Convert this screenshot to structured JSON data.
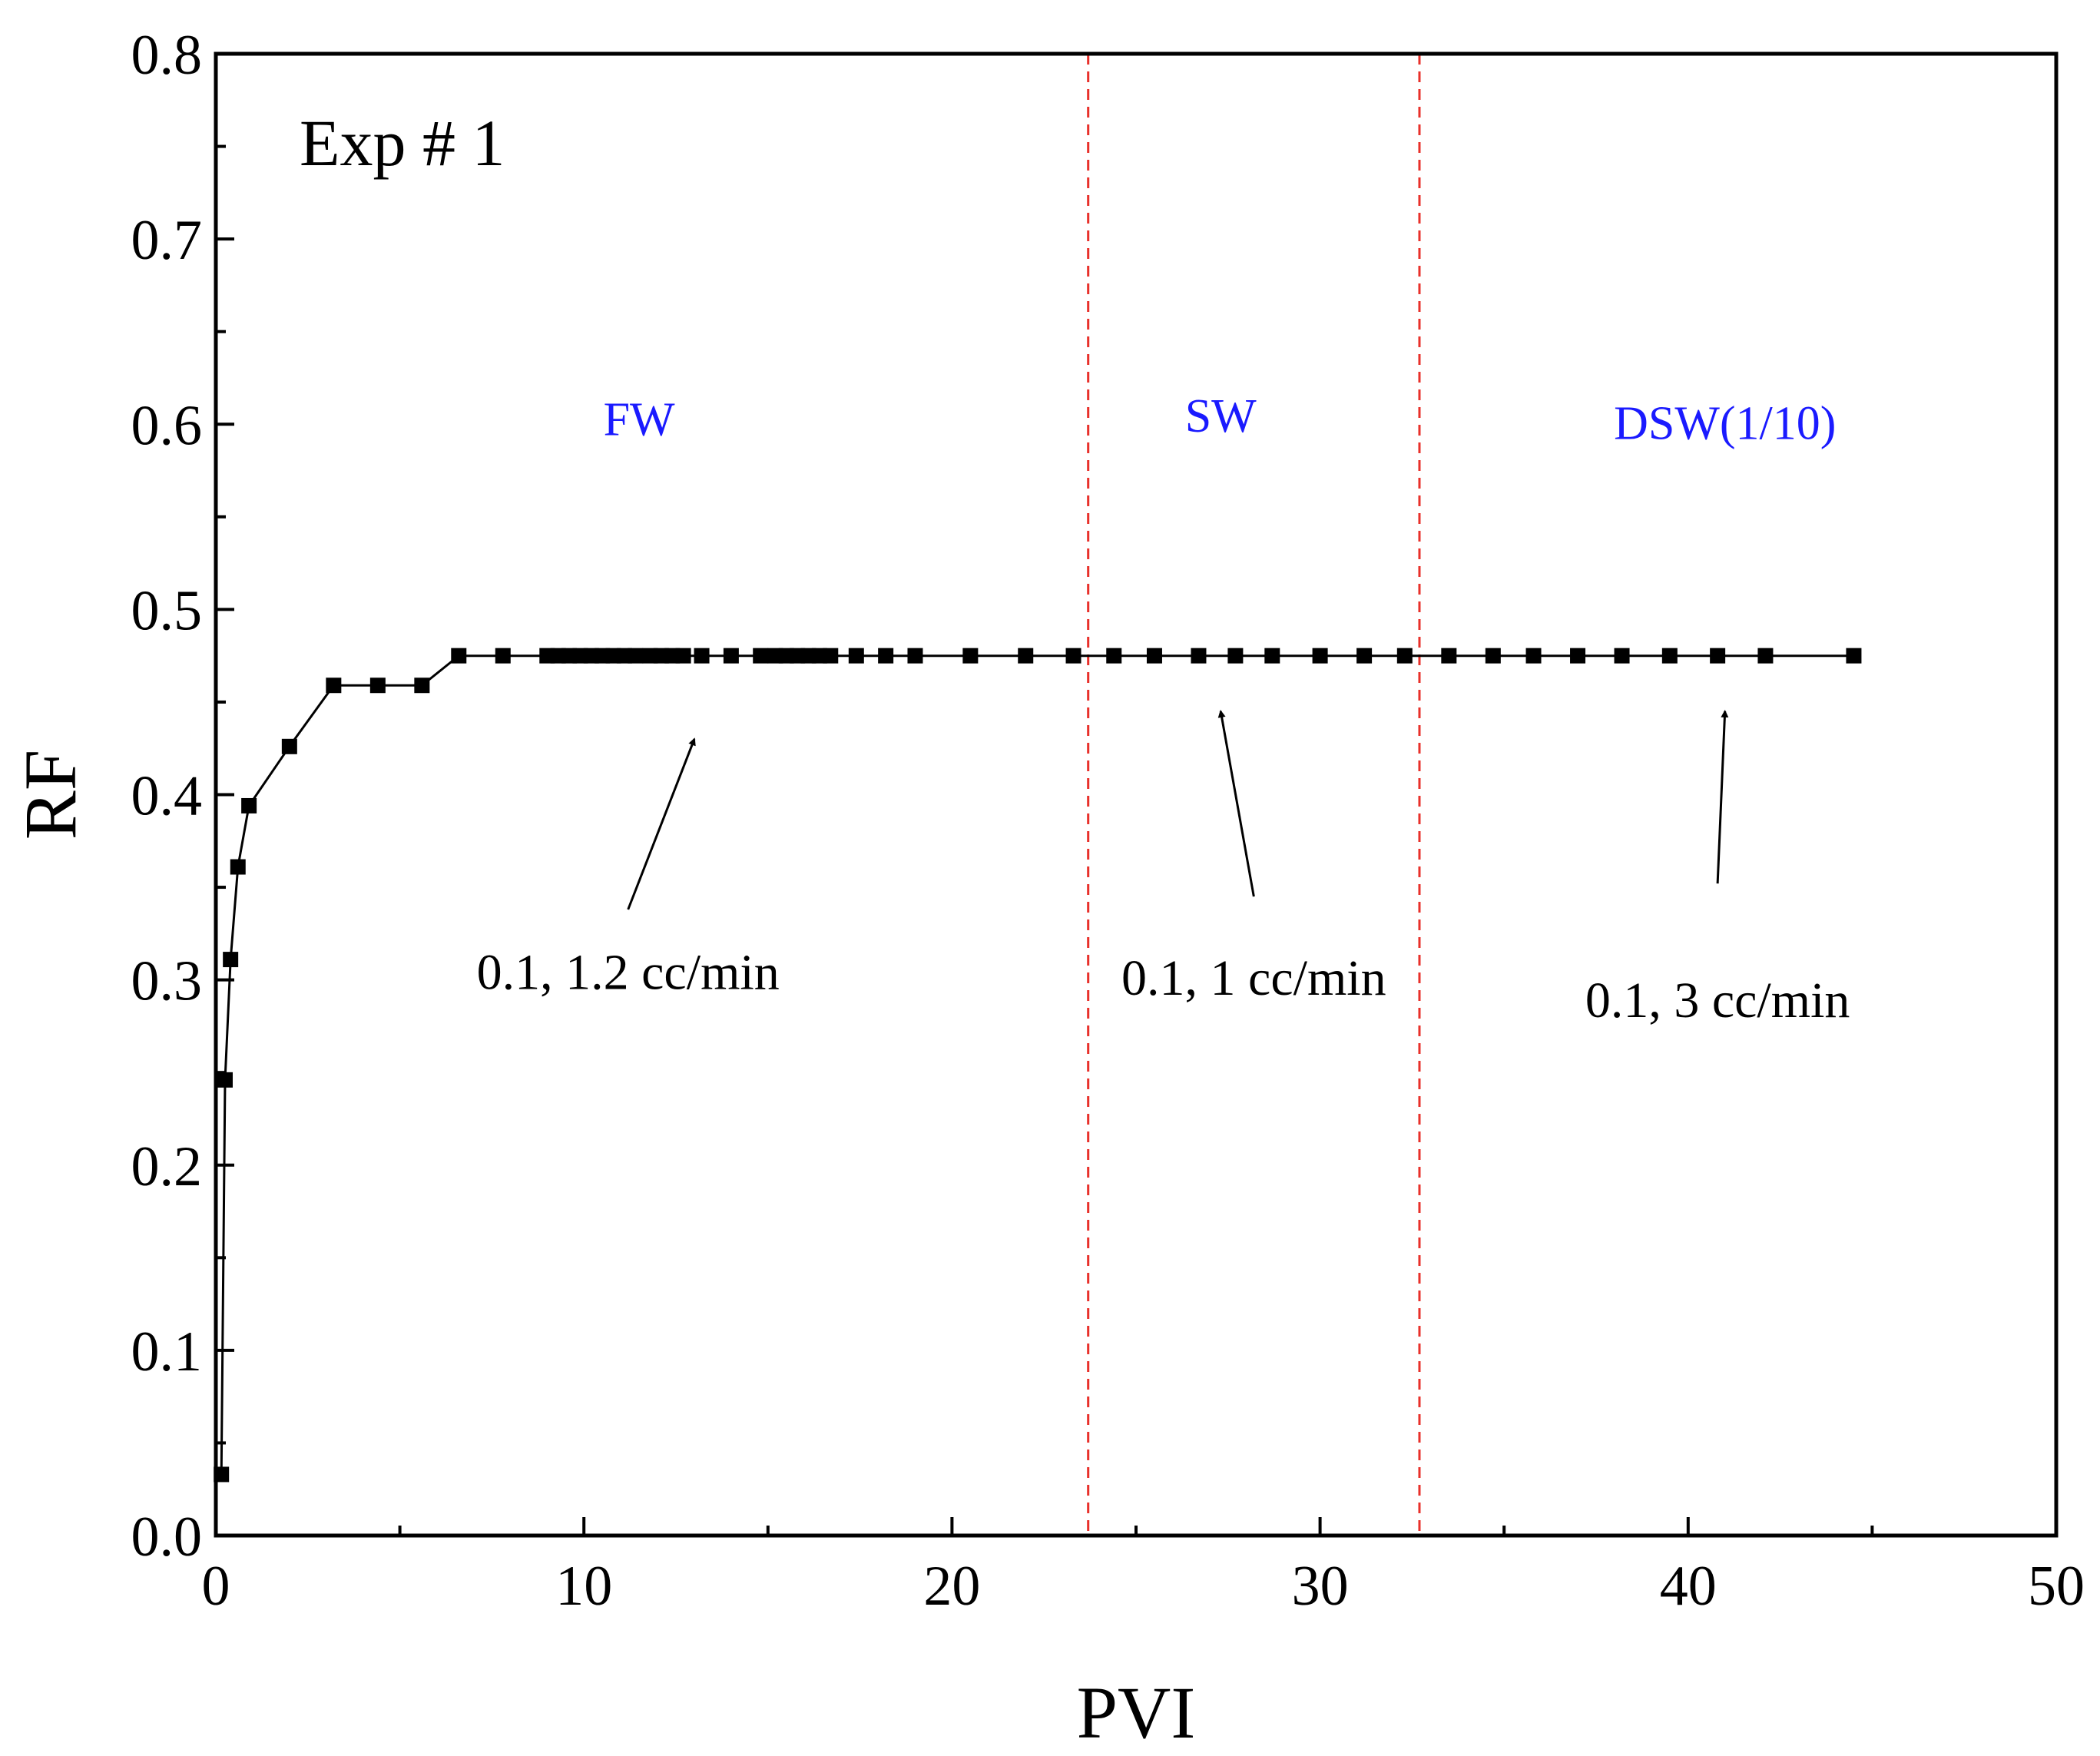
{
  "chart_data": {
    "type": "line",
    "title": "",
    "panel_label": "Exp # 1",
    "xlabel": "PVI",
    "ylabel": "RF",
    "xlim": [
      0,
      50
    ],
    "ylim": [
      0.0,
      0.8
    ],
    "x_ticks": [
      0,
      10,
      20,
      30,
      40,
      50
    ],
    "x_tick_labels": [
      "0",
      "10",
      "20",
      "30",
      "40",
      "50"
    ],
    "y_ticks": [
      0.0,
      0.1,
      0.2,
      0.3,
      0.4,
      0.5,
      0.6,
      0.7,
      0.8
    ],
    "y_tick_labels": [
      "0.0",
      "0.1",
      "0.2",
      "0.3",
      "0.4",
      "0.5",
      "0.6",
      "0.7",
      "0.8"
    ],
    "grid": false,
    "marker": "square",
    "line_color": "#000000",
    "series": [
      {
        "name": "RF",
        "x": [
          0.15,
          0.25,
          0.4,
          0.6,
          0.9,
          2.0,
          3.2,
          4.4,
          5.6,
          6.6,
          7.8,
          9.0,
          9.3,
          9.6,
          9.9,
          10.2,
          10.5,
          10.8,
          11.1,
          11.4,
          11.8,
          12.1,
          12.4,
          12.7,
          13.2,
          14.0,
          14.8,
          15.2,
          15.5,
          15.8,
          16.1,
          16.4,
          16.7,
          17.4,
          18.2,
          19.0,
          20.5,
          22.0,
          23.3,
          24.4,
          25.5,
          26.7,
          27.7,
          28.7,
          30.0,
          31.2,
          32.3,
          33.5,
          34.7,
          35.8,
          37.0,
          38.2,
          39.5,
          40.8,
          42.1,
          44.5
        ],
        "y": [
          0.033,
          0.246,
          0.311,
          0.361,
          0.394,
          0.426,
          0.459,
          0.459,
          0.459,
          0.475,
          0.475,
          0.475,
          0.475,
          0.475,
          0.475,
          0.475,
          0.475,
          0.475,
          0.475,
          0.475,
          0.475,
          0.475,
          0.475,
          0.475,
          0.475,
          0.475,
          0.475,
          0.475,
          0.475,
          0.475,
          0.475,
          0.475,
          0.475,
          0.475,
          0.475,
          0.475,
          0.475,
          0.475,
          0.475,
          0.475,
          0.475,
          0.475,
          0.475,
          0.475,
          0.475,
          0.475,
          0.475,
          0.475,
          0.475,
          0.475,
          0.475,
          0.475,
          0.475,
          0.475,
          0.475,
          0.475
        ]
      }
    ],
    "vertical_lines": [
      {
        "x": 23.7,
        "color": "#e8302a",
        "style": "dashed"
      },
      {
        "x": 32.7,
        "color": "#e8302a",
        "style": "dashed"
      }
    ],
    "regions": [
      {
        "label": "FW",
        "x": 11.5,
        "y": 0.594
      },
      {
        "label": "SW",
        "x": 27.3,
        "y": 0.596
      },
      {
        "label": "DSW(1/10)",
        "x": 41.0,
        "y": 0.592
      }
    ],
    "annotations": [
      {
        "text": "0.1, 1.2 cc/min",
        "text_x": 11.2,
        "text_y": 0.295,
        "arrow_from": [
          11.2,
          0.338
        ],
        "arrow_to": [
          13.0,
          0.43
        ]
      },
      {
        "text": "0.1, 1 cc/min",
        "text_x": 28.2,
        "text_y": 0.292,
        "arrow_from": [
          28.2,
          0.345
        ],
        "arrow_to": [
          27.3,
          0.445
        ]
      },
      {
        "text": "0.1, 3 cc/min",
        "text_x": 40.8,
        "text_y": 0.28,
        "arrow_from": [
          40.8,
          0.352
        ],
        "arrow_to": [
          41.0,
          0.445
        ]
      }
    ]
  }
}
